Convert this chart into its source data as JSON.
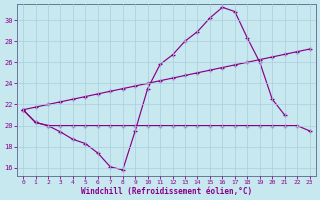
{
  "bg_color": "#c8e8f0",
  "line_color": "#880088",
  "grid_color": "#aaccdd",
  "xlabel": "Windchill (Refroidissement éolien,°C)",
  "xlim": [
    -0.5,
    23.5
  ],
  "ylim": [
    15.2,
    31.5
  ],
  "xticks": [
    0,
    1,
    2,
    3,
    4,
    5,
    6,
    7,
    8,
    9,
    10,
    11,
    12,
    13,
    14,
    15,
    16,
    17,
    18,
    19,
    20,
    21,
    22,
    23
  ],
  "yticks": [
    16,
    18,
    20,
    22,
    24,
    26,
    28,
    30
  ],
  "curve1_x": [
    0,
    1,
    2,
    3,
    4,
    5,
    6,
    7,
    8,
    9,
    10,
    11,
    12,
    13,
    14,
    15,
    16,
    17,
    18,
    19,
    20,
    21
  ],
  "curve1_y": [
    21.5,
    20.3,
    20.0,
    19.4,
    18.7,
    18.3,
    17.4,
    16.1,
    15.8,
    19.5,
    23.5,
    25.8,
    26.7,
    28.0,
    28.9,
    30.2,
    31.2,
    30.8,
    28.3,
    26.0,
    22.5,
    21.0
  ],
  "curve2_x": [
    0,
    1,
    2,
    3,
    4,
    5,
    6,
    7,
    8,
    9,
    10,
    11,
    12,
    13,
    14,
    15,
    16,
    17,
    18,
    19,
    20,
    21,
    22,
    23
  ],
  "curve2_y": [
    21.5,
    20.3,
    20.0,
    20.0,
    20.0,
    20.0,
    20.0,
    20.0,
    20.0,
    20.0,
    20.0,
    20.0,
    20.0,
    20.0,
    20.0,
    20.0,
    20.0,
    20.0,
    20.0,
    20.0,
    20.0,
    20.0,
    20.0,
    19.5
  ],
  "curve3_x": [
    0,
    1,
    2,
    3,
    4,
    5,
    6,
    7,
    8,
    9,
    10,
    11,
    12,
    13,
    14,
    15,
    16,
    17,
    18,
    19,
    20,
    21,
    22,
    23
  ],
  "curve3_y": [
    21.5,
    21.75,
    22.0,
    22.25,
    22.5,
    22.75,
    23.0,
    23.25,
    23.5,
    23.75,
    24.0,
    24.25,
    24.5,
    24.75,
    25.0,
    25.25,
    25.5,
    25.75,
    26.0,
    26.25,
    26.5,
    26.75,
    27.0,
    27.25
  ]
}
